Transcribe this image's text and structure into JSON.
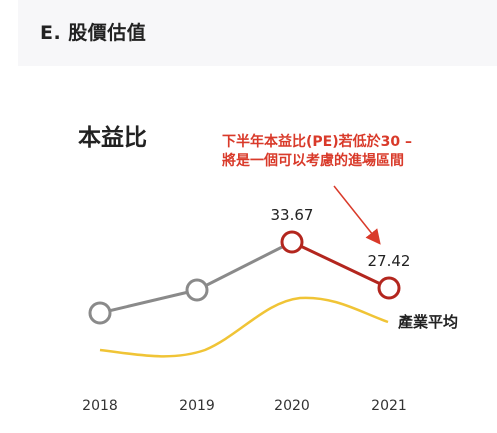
{
  "section": {
    "title": "E. 股價估值"
  },
  "chart_data": {
    "type": "line",
    "title": "本益比",
    "categories": [
      "2018",
      "2019",
      "2020",
      "2021"
    ],
    "series": [
      {
        "values": [
          null,
          null,
          33.67,
          27.42
        ],
        "data_labels": [
          "",
          "",
          "33.67",
          "27.42"
        ],
        "color": "#b3261e"
      },
      {
        "name": "產業平均",
        "values": [
          null,
          null,
          null,
          null
        ],
        "color": "#f0c436"
      }
    ],
    "annotation": {
      "lines": [
        "下半年本益比(PE)若低於30 –",
        "將是一個可以考慮的進場區間"
      ],
      "color": "#d93a2a"
    },
    "grid": false
  }
}
